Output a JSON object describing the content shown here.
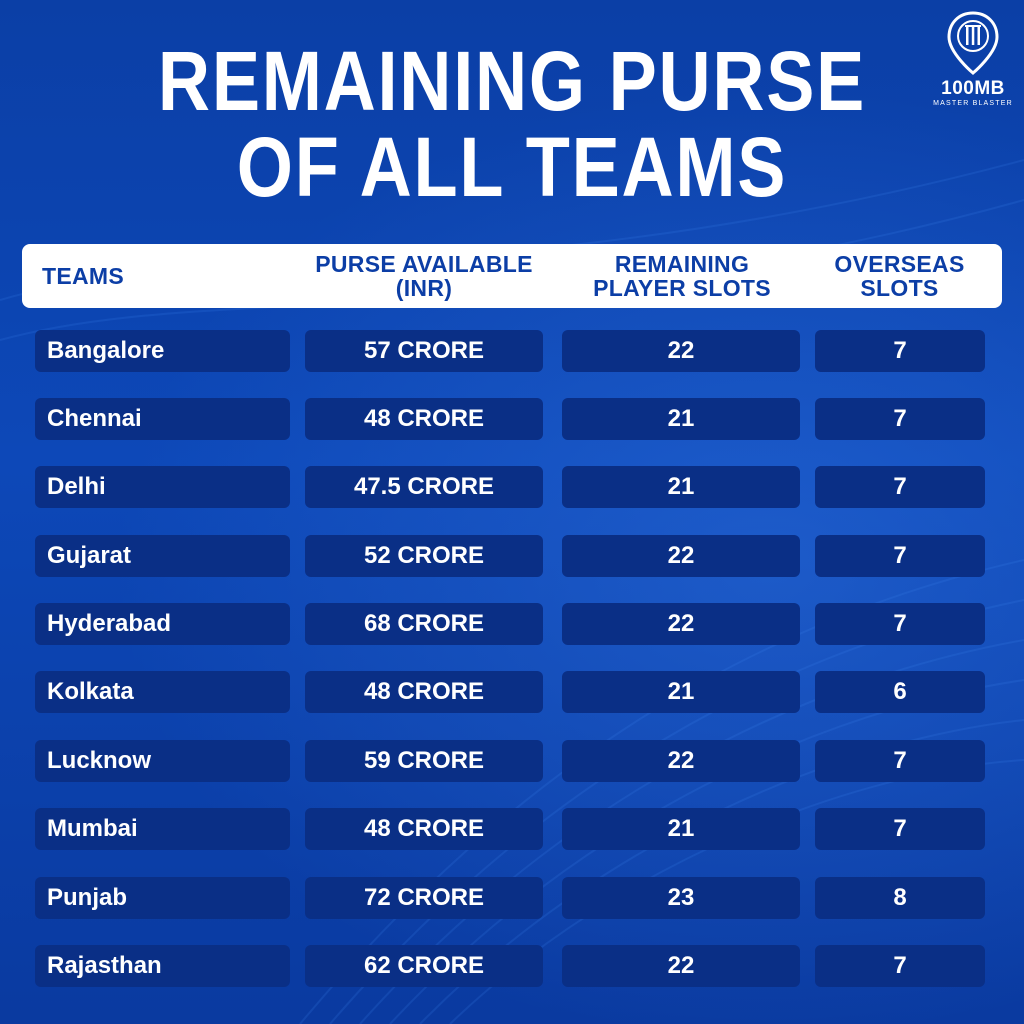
{
  "title": {
    "line1": "REMAINING PURSE",
    "line2": "OF ALL TEAMS"
  },
  "logo": {
    "name": "100MB",
    "tagline": "MASTER BLASTER",
    "icon": "map-pin-stumps-icon"
  },
  "colors": {
    "background": "#0d48b8",
    "cell": "#0a2f86",
    "header_bg": "#ffffff",
    "header_text": "#0c3ea6",
    "text": "#ffffff"
  },
  "table": {
    "headers": {
      "teams": "TEAMS",
      "purse_line1": "PURSE AVAILABLE",
      "purse_line2": "(INR)",
      "slots_line1": "REMAINING",
      "slots_line2": "PLAYER SLOTS",
      "overseas_line1": "OVERSEAS",
      "overseas_line2": "SLOTS"
    },
    "rows": [
      {
        "team": "Bangalore",
        "purse": "57 CRORE",
        "slots": "22",
        "overseas": "7"
      },
      {
        "team": "Chennai",
        "purse": "48 CRORE",
        "slots": "21",
        "overseas": "7"
      },
      {
        "team": "Delhi",
        "purse": "47.5 CRORE",
        "slots": "21",
        "overseas": "7"
      },
      {
        "team": "Gujarat",
        "purse": "52 CRORE",
        "slots": "22",
        "overseas": "7"
      },
      {
        "team": "Hyderabad",
        "purse": "68 CRORE",
        "slots": "22",
        "overseas": "7"
      },
      {
        "team": "Kolkata",
        "purse": "48 CRORE",
        "slots": "21",
        "overseas": "6"
      },
      {
        "team": "Lucknow",
        "purse": "59 CRORE",
        "slots": "22",
        "overseas": "7"
      },
      {
        "team": "Mumbai",
        "purse": "48 CRORE",
        "slots": "21",
        "overseas": "7"
      },
      {
        "team": "Punjab",
        "purse": "72 CRORE",
        "slots": "23",
        "overseas": "8"
      },
      {
        "team": "Rajasthan",
        "purse": "62 CRORE",
        "slots": "22",
        "overseas": "7"
      }
    ]
  }
}
